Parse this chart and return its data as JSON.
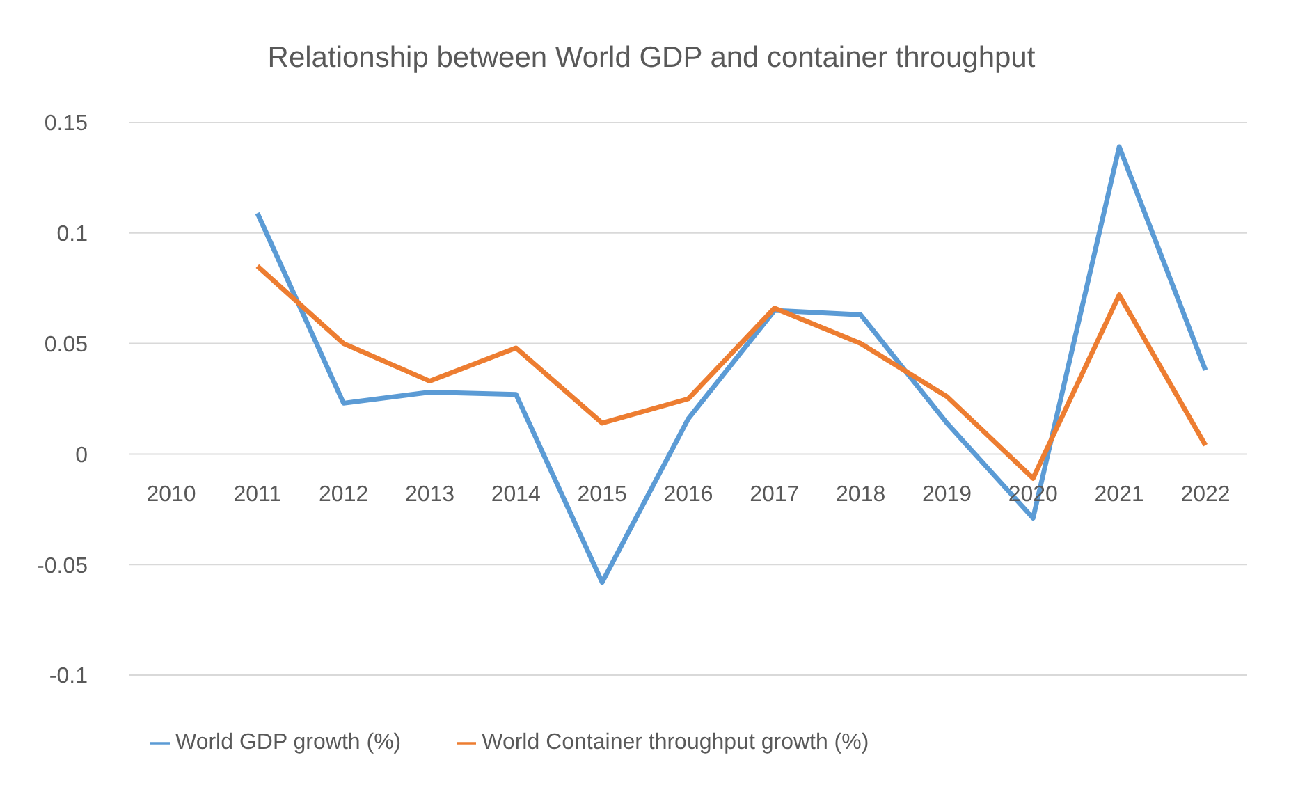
{
  "chart_data": {
    "type": "line",
    "title": "Relationship between World GDP and container throughput",
    "categories": [
      "2010",
      "2011",
      "2012",
      "2013",
      "2014",
      "2015",
      "2016",
      "2017",
      "2018",
      "2019",
      "2020",
      "2021",
      "2022"
    ],
    "series": [
      {
        "name": "World GDP growth (%)",
        "color": "#5b9bd5",
        "values": [
          null,
          0.109,
          0.023,
          0.028,
          0.027,
          -0.058,
          0.016,
          0.065,
          0.063,
          0.014,
          -0.029,
          0.139,
          0.038
        ]
      },
      {
        "name": "World Container throughput growth (%)",
        "color": "#ed7d31",
        "values": [
          null,
          0.085,
          0.05,
          0.033,
          0.048,
          0.014,
          0.025,
          0.066,
          0.05,
          0.026,
          -0.011,
          0.072,
          0.004
        ]
      }
    ],
    "ylim": [
      -0.1,
      0.15
    ],
    "yticks": [
      -0.1,
      -0.05,
      0,
      0.05,
      0.1,
      0.15
    ],
    "grid": "y",
    "legend": "bottom",
    "marker": "none",
    "line_style": "solid"
  }
}
